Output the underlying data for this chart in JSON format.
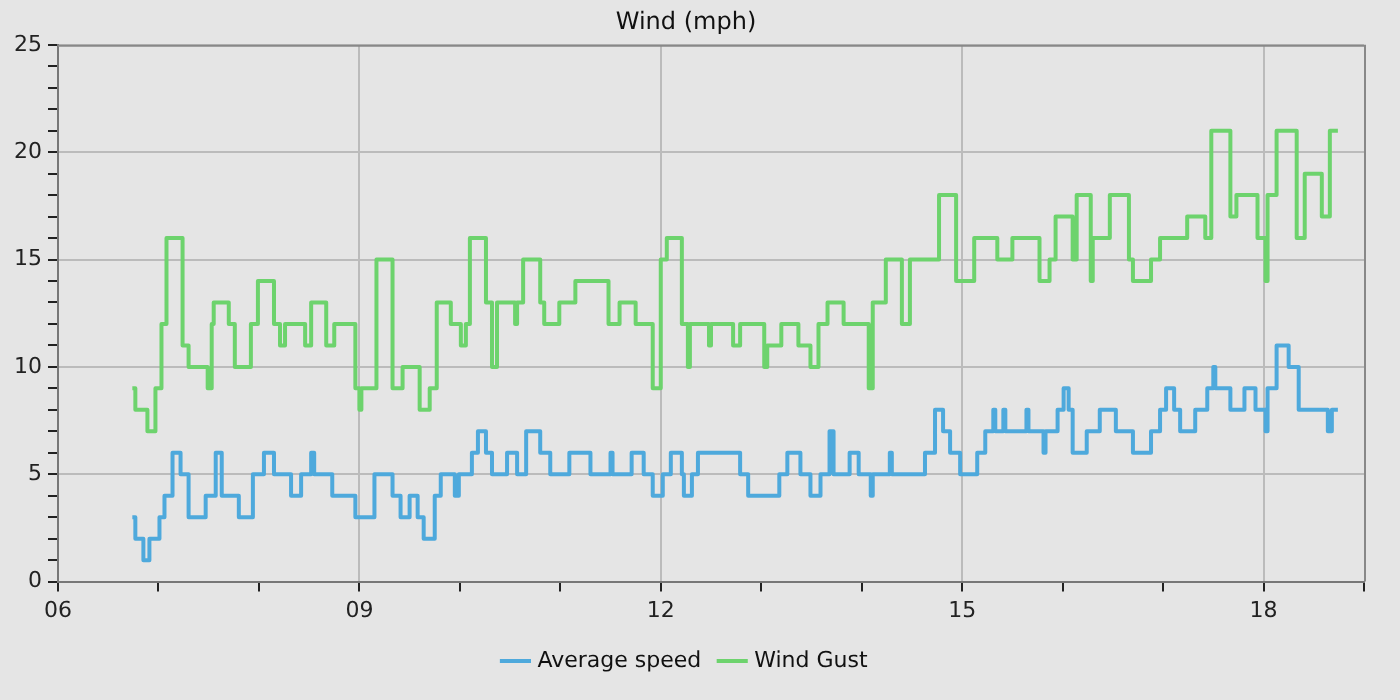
{
  "chart_data": {
    "type": "step",
    "title": "Wind (mph)",
    "xlim": [
      6,
      19
    ],
    "xticks": [
      {
        "value": 6,
        "label": "06"
      },
      {
        "value": 7,
        "label": null
      },
      {
        "value": 8,
        "label": null
      },
      {
        "value": 9,
        "label": "09"
      },
      {
        "value": 10,
        "label": null
      },
      {
        "value": 11,
        "label": null
      },
      {
        "value": 12,
        "label": "12"
      },
      {
        "value": 13,
        "label": null
      },
      {
        "value": 14,
        "label": null
      },
      {
        "value": 15,
        "label": "15"
      },
      {
        "value": 16,
        "label": null
      },
      {
        "value": 17,
        "label": null
      },
      {
        "value": 18,
        "label": "18"
      },
      {
        "value": 19,
        "label": null
      }
    ],
    "ylim": [
      0,
      25
    ],
    "yticks": [
      0,
      {
        "value": 1,
        "label": null
      },
      {
        "value": 2,
        "label": null
      },
      {
        "value": 3,
        "label": null
      },
      {
        "value": 4,
        "label": null
      },
      5,
      {
        "value": 6,
        "label": null
      },
      {
        "value": 7,
        "label": null
      },
      {
        "value": 8,
        "label": null
      },
      {
        "value": 9,
        "label": null
      },
      10,
      {
        "value": 11,
        "label": null
      },
      {
        "value": 12,
        "label": null
      },
      {
        "value": 13,
        "label": null
      },
      {
        "value": 14,
        "label": null
      },
      15,
      {
        "value": 16,
        "label": null
      },
      {
        "value": 17,
        "label": null
      },
      {
        "value": 18,
        "label": null
      },
      {
        "value": 19,
        "label": null
      },
      20,
      {
        "value": 21,
        "label": null
      },
      {
        "value": 22,
        "label": null
      },
      {
        "value": 23,
        "label": null
      },
      {
        "value": 24,
        "label": null
      },
      25
    ],
    "grid": true,
    "legend": "bottom",
    "marker": "none",
    "line_style": "solid",
    "series": [
      {
        "name": "Average speed",
        "color": "#4ea9dc",
        "x": [
          6.74,
          6.77,
          6.85,
          6.91,
          7.01,
          7.06,
          7.14,
          7.22,
          7.3,
          7.47,
          7.57,
          7.63,
          7.8,
          7.94,
          8.05,
          8.15,
          8.32,
          8.42,
          8.52,
          8.55,
          8.73,
          8.96,
          9.15,
          9.33,
          9.41,
          9.5,
          9.58,
          9.64,
          9.75,
          9.81,
          9.95,
          9.99,
          10.12,
          10.18,
          10.26,
          10.32,
          10.47,
          10.57,
          10.66,
          10.8,
          10.9,
          11.09,
          11.3,
          11.5,
          11.52,
          11.71,
          11.83,
          11.92,
          12.02,
          12.1,
          12.21,
          12.23,
          12.31,
          12.37,
          12.79,
          12.87,
          13.18,
          13.26,
          13.39,
          13.49,
          13.59,
          13.68,
          13.72,
          13.88,
          13.97,
          14.09,
          14.11,
          14.28,
          14.3,
          14.63,
          14.73,
          14.81,
          14.88,
          14.98,
          15.15,
          15.23,
          15.31,
          15.33,
          15.41,
          15.43,
          15.64,
          15.66,
          15.81,
          15.83,
          15.95,
          16.01,
          16.06,
          16.1,
          16.24,
          16.37,
          16.53,
          16.7,
          16.88,
          16.97,
          17.03,
          17.11,
          17.17,
          17.32,
          17.44,
          17.5,
          17.52,
          17.67,
          17.81,
          17.92,
          18.02,
          18.04,
          18.13,
          18.25,
          18.35,
          18.64,
          18.68,
          18.74
        ],
        "values": [
          3,
          2,
          1,
          2,
          3,
          4,
          6,
          5,
          3,
          4,
          6,
          4,
          3,
          5,
          6,
          5,
          4,
          5,
          6,
          5,
          4,
          3,
          5,
          4,
          3,
          4,
          3,
          2,
          4,
          5,
          4,
          5,
          6,
          7,
          6,
          5,
          6,
          5,
          7,
          6,
          5,
          6,
          5,
          6,
          5,
          6,
          5,
          4,
          5,
          6,
          5,
          4,
          5,
          6,
          5,
          4,
          5,
          6,
          5,
          4,
          5,
          7,
          5,
          6,
          5,
          4,
          5,
          6,
          5,
          6,
          8,
          7,
          6,
          5,
          6,
          7,
          8,
          7,
          8,
          7,
          8,
          7,
          6,
          7,
          8,
          9,
          8,
          6,
          7,
          8,
          7,
          6,
          7,
          8,
          9,
          8,
          7,
          8,
          9,
          10,
          9,
          8,
          9,
          8,
          7,
          9,
          11,
          10,
          8,
          7,
          8,
          8
        ]
      },
      {
        "name": "Wind Gust",
        "color": "#6dd36d",
        "x": [
          6.74,
          6.77,
          6.89,
          6.97,
          7.03,
          7.08,
          7.24,
          7.3,
          7.49,
          7.53,
          7.55,
          7.7,
          7.76,
          7.92,
          7.99,
          8.15,
          8.21,
          8.26,
          8.46,
          8.52,
          8.67,
          8.75,
          8.96,
          9.0,
          9.02,
          9.17,
          9.33,
          9.43,
          9.6,
          9.7,
          9.77,
          9.91,
          10.01,
          10.06,
          10.1,
          10.26,
          10.32,
          10.37,
          10.55,
          10.57,
          10.63,
          10.8,
          10.84,
          10.99,
          11.15,
          11.48,
          11.59,
          11.75,
          11.92,
          12.0,
          12.06,
          12.21,
          12.27,
          12.29,
          12.48,
          12.5,
          12.72,
          12.79,
          13.03,
          13.06,
          13.2,
          13.37,
          13.49,
          13.57,
          13.66,
          13.82,
          14.07,
          14.11,
          14.24,
          14.4,
          14.48,
          14.77,
          14.94,
          15.12,
          15.35,
          15.5,
          15.77,
          15.87,
          15.93,
          16.1,
          16.14,
          16.28,
          16.3,
          16.47,
          16.66,
          16.7,
          16.88,
          16.97,
          17.24,
          17.42,
          17.48,
          17.67,
          17.73,
          17.94,
          18.02,
          18.04,
          18.13,
          18.33,
          18.41,
          18.58,
          18.66,
          18.74
        ],
        "values": [
          9,
          8,
          7,
          9,
          12,
          16,
          11,
          10,
          9,
          12,
          13,
          12,
          10,
          12,
          14,
          12,
          11,
          12,
          11,
          13,
          11,
          12,
          9,
          8,
          9,
          15,
          9,
          10,
          8,
          9,
          13,
          12,
          11,
          12,
          16,
          13,
          10,
          13,
          12,
          13,
          15,
          13,
          12,
          13,
          14,
          12,
          13,
          12,
          9,
          15,
          16,
          12,
          10,
          12,
          11,
          12,
          11,
          12,
          10,
          11,
          12,
          11,
          10,
          12,
          13,
          12,
          9,
          13,
          15,
          12,
          15,
          18,
          14,
          16,
          15,
          16,
          14,
          15,
          17,
          15,
          18,
          14,
          16,
          18,
          15,
          14,
          15,
          16,
          17,
          16,
          21,
          17,
          18,
          16,
          14,
          18,
          21,
          16,
          19,
          17,
          21,
          21
        ]
      }
    ]
  }
}
